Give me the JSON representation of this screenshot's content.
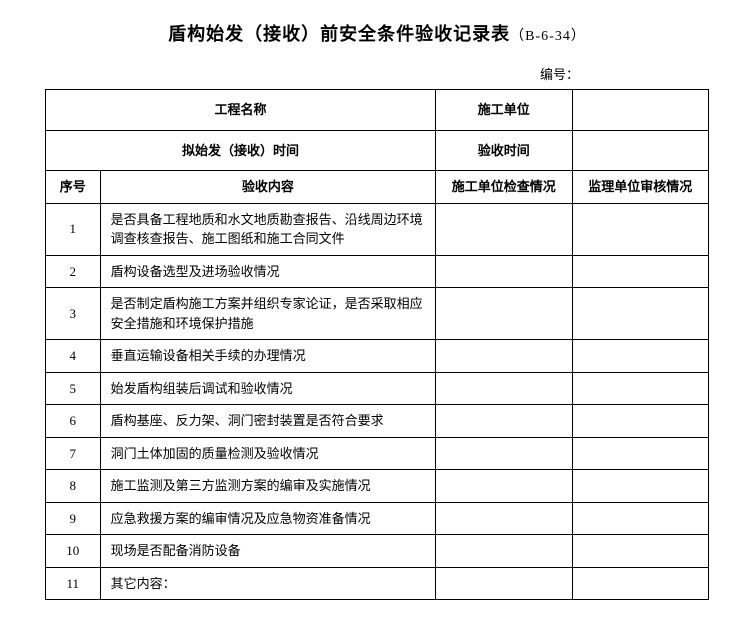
{
  "title_main": "盾构始发（接收）前安全条件验收记录表",
  "title_code": "（B-6-34）",
  "doc_number_label": "编号：",
  "header": {
    "project_name_label": "工程名称",
    "construction_unit_label": "施工单位",
    "planned_time_label": "拟始发（接收）时间",
    "acceptance_time_label": "验收时间",
    "seq_label": "序号",
    "content_label": "验收内容",
    "check1_label": "施工单位检查情况",
    "check2_label": "监理单位审核情况"
  },
  "rows": [
    {
      "seq": "1",
      "content": "是否具备工程地质和水文地质勘查报告、沿线周边环境调查核查报告、施工图纸和施工合同文件"
    },
    {
      "seq": "2",
      "content": "盾构设备选型及进场验收情况"
    },
    {
      "seq": "3",
      "content": "是否制定盾构施工方案并组织专家论证，是否采取相应安全措施和环境保护措施"
    },
    {
      "seq": "4",
      "content": "垂直运输设备相关手续的办理情况"
    },
    {
      "seq": "5",
      "content": "始发盾构组装后调试和验收情况"
    },
    {
      "seq": "6",
      "content": "盾构基座、反力架、洞门密封装置是否符合要求"
    },
    {
      "seq": "7",
      "content": "洞门土体加固的质量检测及验收情况"
    },
    {
      "seq": "8",
      "content": "施工监测及第三方监测方案的编审及实施情况"
    },
    {
      "seq": "9",
      "content": "应急救援方案的编审情况及应急物资准备情况"
    },
    {
      "seq": "10",
      "content": "现场是否配备消防设备"
    },
    {
      "seq": "11",
      "content": "其它内容："
    }
  ]
}
